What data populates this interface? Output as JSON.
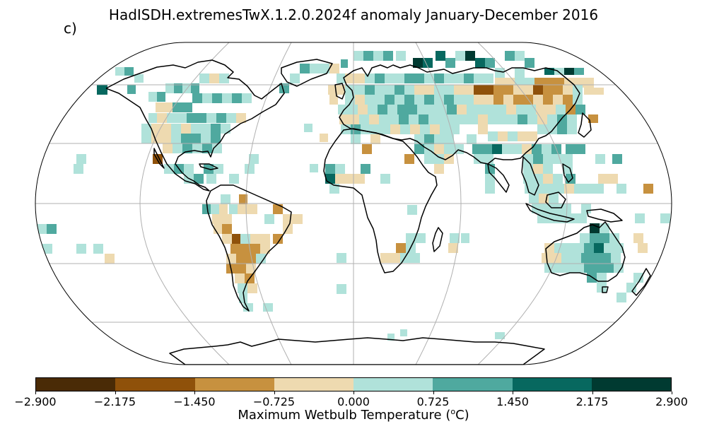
{
  "panel_label": "c)",
  "title": "HadISDH.extremesTwX.1.2.0.2024f anomaly January-December 2016",
  "colorbar": {
    "label_prefix": "Maximum Wetbulb Temperature (",
    "label_sup": "o",
    "label_suffix": "C)",
    "ticks": [
      "−2.900",
      "−2.175",
      "−1.450",
      "−0.725",
      "0.000",
      "0.725",
      "1.450",
      "2.175",
      "2.900"
    ],
    "colors": [
      "#4a2b06",
      "#8f510a",
      "#c7913f",
      "#eedab0",
      "#b0e2da",
      "#4fa99f",
      "#07685f",
      "#003a31"
    ]
  },
  "map_data": {
    "projection": "Robinson",
    "grid_resolution_deg": 5,
    "value_classes": [
      "-2.900 to -2.175",
      "-2.175 to -1.450",
      "-1.450 to -0.725",
      "-0.725 to 0.000",
      "0.000 to 0.725",
      "0.725 to 1.450",
      "1.450 to 2.175",
      "2.175 to 2.900"
    ]
  }
}
